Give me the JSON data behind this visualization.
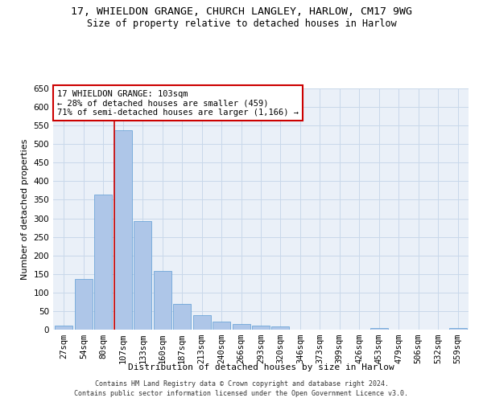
{
  "title": "17, WHIELDON GRANGE, CHURCH LANGLEY, HARLOW, CM17 9WG",
  "subtitle": "Size of property relative to detached houses in Harlow",
  "xlabel": "Distribution of detached houses by size in Harlow",
  "ylabel": "Number of detached properties",
  "footer_line1": "Contains HM Land Registry data © Crown copyright and database right 2024.",
  "footer_line2": "Contains public sector information licensed under the Open Government Licence v3.0.",
  "categories": [
    "27sqm",
    "54sqm",
    "80sqm",
    "107sqm",
    "133sqm",
    "160sqm",
    "187sqm",
    "213sqm",
    "240sqm",
    "266sqm",
    "293sqm",
    "320sqm",
    "346sqm",
    "373sqm",
    "399sqm",
    "426sqm",
    "453sqm",
    "479sqm",
    "506sqm",
    "532sqm",
    "559sqm"
  ],
  "values": [
    11,
    137,
    363,
    537,
    293,
    158,
    69,
    40,
    21,
    16,
    11,
    8,
    0,
    0,
    0,
    0,
    5,
    0,
    0,
    0,
    5
  ],
  "bar_color": "#aec6e8",
  "bar_edge_color": "#5b9bd5",
  "annotation_text": "17 WHIELDON GRANGE: 103sqm\n← 28% of detached houses are smaller (459)\n71% of semi-detached houses are larger (1,166) →",
  "annotation_box_color": "#ffffff",
  "annotation_box_edge_color": "#cc0000",
  "line_color": "#cc0000",
  "ylim": [
    0,
    650
  ],
  "yticks": [
    0,
    50,
    100,
    150,
    200,
    250,
    300,
    350,
    400,
    450,
    500,
    550,
    600,
    650
  ],
  "background_color": "#ffffff",
  "plot_bg_color": "#eaf0f8",
  "grid_color": "#c8d8ea",
  "title_fontsize": 9.5,
  "subtitle_fontsize": 8.5,
  "axis_label_fontsize": 8,
  "tick_fontsize": 7.5,
  "footer_fontsize": 6,
  "annotation_fontsize": 7.5
}
